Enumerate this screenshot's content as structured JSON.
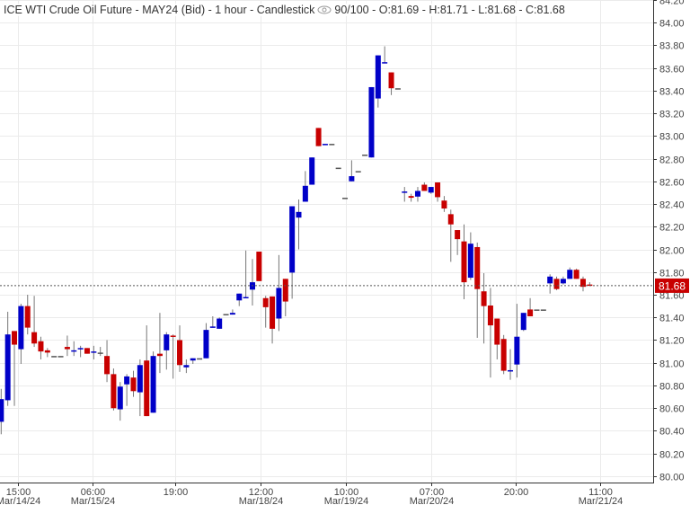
{
  "title": {
    "instrument": "ICE WTI Crude Oil Future - MAY24 (Bid) - 1 hour - Candlestick",
    "eye_icon": "eye-icon",
    "stats": "90/100 - O:81.69 - H:81.71 - L:81.68 - C:81.68"
  },
  "chart_data": {
    "type": "candlestick",
    "title": "ICE WTI Crude Oil Future - MAY24 (Bid) - 1 hour - Candlestick",
    "ylim": [
      80.0,
      84.2
    ],
    "yticks": [
      "80.00",
      "80.20",
      "80.40",
      "80.60",
      "80.80",
      "81.00",
      "81.20",
      "81.40",
      "81.60",
      "81.80",
      "82.00",
      "82.20",
      "82.40",
      "82.60",
      "82.80",
      "83.00",
      "83.20",
      "83.40",
      "83.60",
      "83.80",
      "84.00",
      "84.20"
    ],
    "xticks": [
      {
        "time": "15:00",
        "date": "Mar/14/24",
        "bar_index": 2.5
      },
      {
        "time": "06:00",
        "date": "Mar/15/24",
        "bar_index": 13.8
      },
      {
        "time": "19:00",
        "date": "",
        "bar_index": 26.3
      },
      {
        "time": "12:00",
        "date": "Mar/18/24",
        "bar_index": 39.2
      },
      {
        "time": "10:00",
        "date": "Mar/19/24",
        "bar_index": 52.1
      },
      {
        "time": "07:00",
        "date": "Mar/20/24",
        "bar_index": 65.0
      },
      {
        "time": "20:00",
        "date": "",
        "bar_index": 77.8
      },
      {
        "time": "11:00",
        "date": "Mar/21/24",
        "bar_index": 90.6
      }
    ],
    "grid": true,
    "current_price": "81.68",
    "colors": {
      "up": "#0000c8",
      "down": "#c80000",
      "flat": "#555555",
      "price_label": "#c80000",
      "grid": "#ebebeb"
    },
    "ohlc_fields": [
      "open",
      "high",
      "low",
      "close"
    ],
    "ohlc": [
      [
        80.48,
        80.77,
        80.37,
        80.68
      ],
      [
        80.67,
        81.45,
        80.62,
        81.25
      ],
      [
        81.28,
        81.28,
        80.62,
        81.16
      ],
      [
        81.12,
        81.52,
        80.99,
        81.5
      ],
      [
        81.5,
        81.6,
        81.25,
        81.31
      ],
      [
        81.27,
        81.59,
        81.14,
        81.17
      ],
      [
        81.19,
        81.23,
        81.03,
        81.1
      ],
      [
        81.11,
        81.13,
        81.05,
        81.09
      ],
      [
        81.06,
        81.06,
        81.06,
        81.06
      ],
      [
        81.06,
        81.06,
        81.06,
        81.06
      ],
      [
        81.14,
        81.24,
        81.06,
        81.12
      ],
      [
        81.1,
        81.19,
        81.06,
        81.11
      ],
      [
        81.12,
        81.15,
        81.05,
        81.13
      ],
      [
        81.13,
        81.13,
        81.08,
        81.08
      ],
      [
        81.09,
        81.15,
        81.03,
        81.1
      ],
      [
        81.09,
        81.14,
        81.06,
        81.09
      ],
      [
        81.06,
        81.2,
        80.83,
        80.9
      ],
      [
        80.9,
        80.95,
        80.58,
        80.6
      ],
      [
        80.59,
        80.83,
        80.49,
        80.79
      ],
      [
        80.81,
        80.9,
        80.62,
        80.88
      ],
      [
        80.87,
        80.93,
        80.7,
        80.75
      ],
      [
        80.74,
        81.03,
        80.53,
        80.98
      ],
      [
        81.02,
        81.33,
        80.53,
        80.53
      ],
      [
        80.56,
        81.1,
        80.56,
        81.06
      ],
      [
        81.08,
        81.44,
        80.91,
        81.06
      ],
      [
        81.11,
        81.27,
        80.94,
        81.25
      ],
      [
        81.24,
        81.25,
        80.86,
        81.23
      ],
      [
        81.2,
        81.33,
        80.92,
        80.98
      ],
      [
        80.96,
        81.03,
        80.91,
        80.98
      ],
      [
        81.02,
        81.04,
        80.99,
        81.04
      ],
      [
        81.04,
        81.04,
        81.04,
        81.04
      ],
      [
        81.04,
        81.35,
        81.04,
        81.29
      ],
      [
        81.31,
        81.41,
        81.31,
        81.32
      ],
      [
        81.3,
        81.4,
        81.3,
        81.39
      ],
      [
        81.43,
        81.43,
        81.43,
        81.43
      ],
      [
        81.425,
        81.47,
        81.425,
        81.44
      ],
      [
        81.55,
        81.61,
        81.5,
        81.61
      ],
      [
        81.57,
        81.99,
        81.57,
        81.58
      ],
      [
        81.645,
        81.915,
        81.505,
        81.71
      ],
      [
        81.98,
        81.98,
        81.72,
        81.72
      ],
      [
        81.57,
        81.59,
        81.31,
        81.49
      ],
      [
        81.585,
        81.585,
        81.17,
        81.3
      ],
      [
        81.39,
        81.95,
        81.28,
        81.66
      ],
      [
        81.74,
        81.74,
        81.41,
        81.54
      ],
      [
        81.795,
        82.38,
        81.565,
        82.38
      ],
      [
        82.28,
        82.44,
        82.0,
        82.33
      ],
      [
        82.42,
        82.69,
        82.42,
        82.56
      ],
      [
        82.57,
        82.81,
        82.57,
        82.81
      ],
      [
        83.07,
        83.07,
        82.91,
        82.91
      ],
      [
        82.92,
        82.93,
        82.92,
        82.93
      ],
      [
        82.93,
        82.93,
        82.93,
        82.93
      ],
      [
        82.72,
        82.72,
        82.72,
        82.72
      ],
      [
        82.455,
        82.455,
        82.455,
        82.455
      ],
      [
        82.6,
        82.785,
        82.6,
        82.645
      ],
      [
        82.69,
        82.69,
        82.69,
        82.69
      ],
      [
        82.835,
        82.835,
        82.835,
        82.835
      ],
      [
        82.81,
        83.43,
        82.81,
        83.43
      ],
      [
        83.33,
        83.71,
        83.25,
        83.71
      ],
      [
        83.64,
        83.79,
        83.64,
        83.65
      ],
      [
        83.56,
        83.56,
        83.36,
        83.42
      ],
      [
        83.42,
        83.42,
        83.42,
        83.42
      ],
      [
        82.505,
        82.55,
        82.42,
        82.51
      ],
      [
        82.47,
        82.49,
        82.42,
        82.455
      ],
      [
        82.465,
        82.55,
        82.42,
        82.515
      ],
      [
        82.57,
        82.59,
        82.515,
        82.515
      ],
      [
        82.5,
        82.55,
        82.49,
        82.55
      ],
      [
        82.59,
        82.59,
        82.42,
        82.46
      ],
      [
        82.43,
        82.47,
        82.33,
        82.36
      ],
      [
        82.31,
        82.35,
        81.89,
        82.22
      ],
      [
        82.17,
        82.17,
        81.95,
        82.09
      ],
      [
        82.07,
        82.22,
        81.56,
        81.71
      ],
      [
        81.75,
        82.15,
        81.73,
        82.05
      ],
      [
        82.02,
        82.06,
        81.22,
        81.65
      ],
      [
        81.63,
        81.79,
        81.17,
        81.5
      ],
      [
        81.505,
        81.66,
        80.87,
        81.33
      ],
      [
        81.39,
        81.39,
        81.03,
        81.16
      ],
      [
        81.21,
        81.245,
        80.9,
        80.93
      ],
      [
        80.93,
        81.12,
        80.85,
        80.935
      ],
      [
        80.985,
        81.52,
        80.87,
        81.23
      ],
      [
        81.29,
        81.44,
        81.28,
        81.44
      ],
      [
        81.47,
        81.57,
        81.41,
        81.41
      ],
      [
        81.47,
        81.47,
        81.47,
        81.47
      ],
      [
        81.47,
        81.47,
        81.47,
        81.47
      ],
      [
        81.7,
        81.78,
        81.61,
        81.76
      ],
      [
        81.74,
        81.76,
        81.64,
        81.65
      ],
      [
        81.7,
        81.76,
        81.69,
        81.74
      ],
      [
        81.74,
        81.84,
        81.74,
        81.82
      ],
      [
        81.82,
        81.83,
        81.74,
        81.74
      ],
      [
        81.74,
        81.76,
        81.63,
        81.67
      ],
      [
        81.69,
        81.71,
        81.68,
        81.68
      ]
    ]
  }
}
